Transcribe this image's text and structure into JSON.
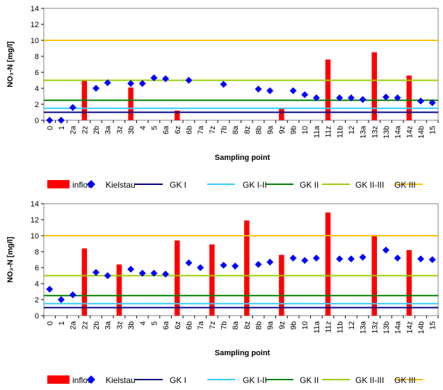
{
  "chart_data": [
    {
      "type": "bar",
      "xlabel": "Sampling point",
      "ylabel": "NO₃-N [mg/l]",
      "ylim": [
        0,
        14
      ],
      "yticks": [
        0,
        2,
        4,
        6,
        8,
        10,
        12,
        14
      ],
      "grid": false,
      "legend_placement": "bottom",
      "categories": [
        "0",
        "1",
        "2a",
        "2z",
        "2b",
        "3a",
        "3z",
        "3b",
        "4",
        "5",
        "6a",
        "6z",
        "6b",
        "7a",
        "7z",
        "7b",
        "8a",
        "8z",
        "8b",
        "9a",
        "9z",
        "9b",
        "10",
        "11a",
        "11z",
        "11b",
        "12",
        "13a",
        "13z",
        "13b",
        "14a",
        "14z",
        "14b",
        "15"
      ],
      "series": [
        {
          "name": "inflow",
          "kind": "bar",
          "color": "#ff0000",
          "values": [
            null,
            null,
            null,
            5.0,
            null,
            null,
            null,
            4.1,
            null,
            null,
            null,
            1.2,
            null,
            null,
            null,
            null,
            null,
            null,
            null,
            null,
            1.5,
            null,
            null,
            null,
            7.6,
            null,
            null,
            null,
            8.5,
            null,
            null,
            5.6,
            null,
            null
          ]
        },
        {
          "name": "Kielstau",
          "kind": "scatter",
          "color": "#0000ff",
          "values": [
            0.0,
            0.0,
            1.6,
            null,
            4.0,
            4.7,
            null,
            4.6,
            4.6,
            5.3,
            5.2,
            null,
            5.0,
            null,
            null,
            4.5,
            null,
            null,
            3.9,
            3.7,
            null,
            3.7,
            3.2,
            2.8,
            null,
            2.8,
            2.8,
            2.6,
            null,
            2.9,
            2.8,
            null,
            2.4,
            2.2
          ]
        }
      ],
      "thresholds": [
        {
          "name": "GK I",
          "value": 1.0,
          "color": "#000080"
        },
        {
          "name": "GK I-II",
          "value": 1.5,
          "color": "#33ccff"
        },
        {
          "name": "GK II",
          "value": 2.5,
          "color": "#008000"
        },
        {
          "name": "GK II-III",
          "value": 5.0,
          "color": "#99cc00"
        },
        {
          "name": "GK III",
          "value": 10.0,
          "color": "#ffc000"
        }
      ]
    },
    {
      "type": "bar",
      "xlabel": "Sampling point",
      "ylabel": "NO₃-N [mg/l]",
      "ylim": [
        0,
        14
      ],
      "yticks": [
        0,
        2,
        4,
        6,
        8,
        10,
        12,
        14
      ],
      "grid": false,
      "legend_placement": "bottom",
      "categories": [
        "0",
        "1",
        "2a",
        "2z",
        "2b",
        "3a",
        "3z",
        "3b",
        "4",
        "5",
        "6a",
        "6z",
        "6b",
        "7a",
        "7z",
        "7b",
        "8a",
        "8z",
        "8b",
        "9a",
        "9z",
        "9b",
        "10",
        "11a",
        "11z",
        "11b",
        "12",
        "13a",
        "13z",
        "13b",
        "14a",
        "14z",
        "14b",
        "15"
      ],
      "series": [
        {
          "name": "inflow",
          "kind": "bar",
          "color": "#ff0000",
          "values": [
            null,
            null,
            null,
            8.4,
            null,
            null,
            6.4,
            null,
            null,
            null,
            null,
            9.4,
            null,
            null,
            8.9,
            null,
            null,
            11.9,
            null,
            null,
            7.6,
            null,
            null,
            null,
            12.9,
            null,
            null,
            null,
            10.1,
            null,
            null,
            8.2,
            null,
            null
          ]
        },
        {
          "name": "Kielstau",
          "kind": "scatter",
          "color": "#0000ff",
          "values": [
            3.3,
            2.0,
            2.6,
            null,
            5.4,
            5.0,
            null,
            5.8,
            5.3,
            5.3,
            5.2,
            null,
            6.6,
            6.0,
            null,
            6.3,
            6.2,
            null,
            6.4,
            6.7,
            null,
            7.2,
            6.9,
            7.2,
            null,
            7.1,
            7.1,
            7.3,
            null,
            8.2,
            7.2,
            null,
            7.1,
            7.0
          ]
        }
      ],
      "thresholds": [
        {
          "name": "GK I",
          "value": 1.0,
          "color": "#000080"
        },
        {
          "name": "GK I-II",
          "value": 1.5,
          "color": "#33ccff"
        },
        {
          "name": "GK II",
          "value": 2.5,
          "color": "#008000"
        },
        {
          "name": "GK II-III",
          "value": 5.0,
          "color": "#99cc00"
        },
        {
          "name": "GK III",
          "value": 10.0,
          "color": "#ffc000"
        }
      ]
    }
  ]
}
